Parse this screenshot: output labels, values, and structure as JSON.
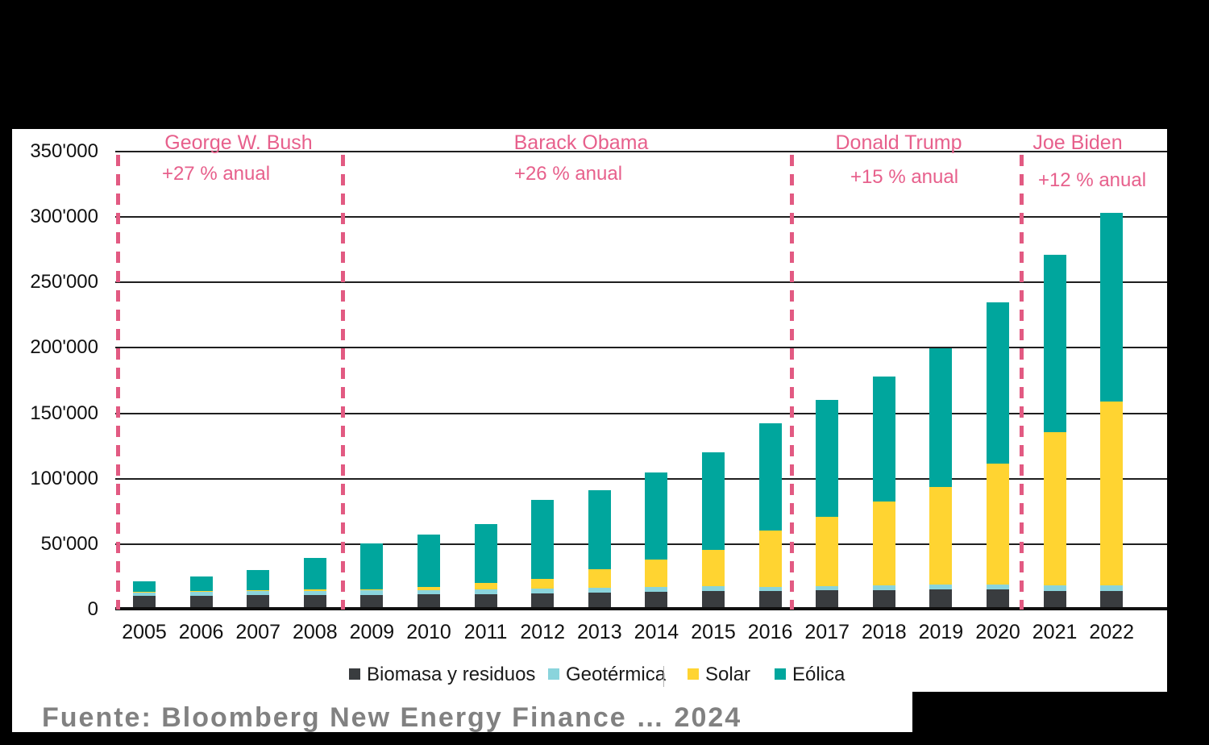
{
  "chart_data": {
    "type": "bar",
    "subtype": "stacked-column",
    "categories": [
      "2005",
      "2006",
      "2007",
      "2008",
      "2009",
      "2010",
      "2011",
      "2012",
      "2013",
      "2014",
      "2015",
      "2016",
      "2017",
      "2018",
      "2019",
      "2020",
      "2021",
      "2022"
    ],
    "series": [
      {
        "name": "Biomasa y residuos",
        "color": "#393c3f",
        "values": [
          10200,
          10600,
          10900,
          11100,
          11100,
          11400,
          11600,
          12500,
          12900,
          13500,
          14100,
          14200,
          14600,
          14600,
          15200,
          15200,
          14000,
          14000
        ]
      },
      {
        "name": "Geotérmica",
        "color": "#8ad4dc",
        "values": [
          3300,
          3300,
          3300,
          3300,
          3400,
          3500,
          3600,
          3700,
          3600,
          3500,
          3500,
          3200,
          3300,
          3600,
          4100,
          4100,
          4200,
          4200
        ]
      },
      {
        "name": "Solar",
        "color": "#ffd431",
        "values": [
          200,
          300,
          500,
          800,
          1200,
          2100,
          4900,
          7100,
          14400,
          21000,
          28200,
          43100,
          53000,
          64300,
          74400,
          92100,
          117200,
          140800
        ]
      },
      {
        "name": "Eólica",
        "color": "#00a69d",
        "values": [
          8000,
          11300,
          15400,
          24400,
          34900,
          40000,
          45000,
          60300,
          60300,
          66500,
          74200,
          81900,
          89300,
          95800,
          106000,
          123200,
          135600,
          144200
        ]
      }
    ],
    "ylim": [
      0,
      350000
    ],
    "y_ticks": [
      "0",
      "50'000",
      "100'000",
      "150'000",
      "200'000",
      "250'000",
      "300'000",
      "350'000"
    ],
    "y_tick_step": 50000,
    "grid": true,
    "legend_position": "bottom",
    "annotations": {
      "periods": [
        {
          "president": "George W. Bush",
          "growth": "+27 % anual",
          "from": "2005",
          "to": "2008"
        },
        {
          "president": "Barack Obama",
          "growth": "+26 % anual",
          "from": "2009",
          "to": "2016"
        },
        {
          "president": "Donald Trump",
          "growth": "+15 % anual",
          "from": "2017",
          "to": "2020"
        },
        {
          "president": "Joe Biden",
          "growth": "+12 % anual",
          "from": "2021",
          "to": "2022"
        }
      ]
    }
  },
  "colors": {
    "accent_pink": "#e7608c",
    "background": "#000000",
    "panel": "#ffffff"
  },
  "source_caption": {
    "text": "Fuente: Bloomberg New Energy Finance … 2024",
    "obscured": true
  }
}
